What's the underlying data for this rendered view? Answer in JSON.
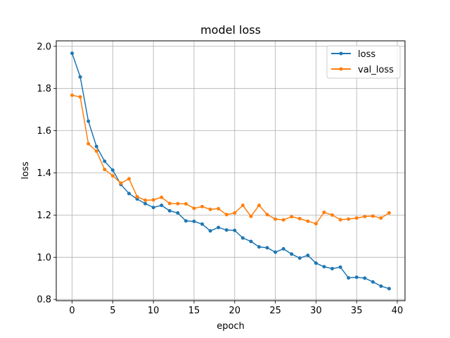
{
  "chart_data": {
    "type": "line",
    "title": "model loss",
    "xlabel": "epoch",
    "ylabel": "loss",
    "xlim": [
      -1.95,
      40.95
    ],
    "ylim": [
      0.794,
      2.026
    ],
    "xticks": [
      0,
      5,
      10,
      15,
      20,
      25,
      30,
      35,
      40
    ],
    "yticks": [
      0.8,
      1.0,
      1.2,
      1.4,
      1.6,
      1.8,
      2.0
    ],
    "xtick_labels": [
      "0",
      "5",
      "10",
      "15",
      "20",
      "25",
      "30",
      "35",
      "40"
    ],
    "ytick_labels": [
      "0.8",
      "1.0",
      "1.2",
      "1.4",
      "1.6",
      "1.8",
      "2.0"
    ],
    "grid": true,
    "legend_position": "top-right",
    "x": [
      0,
      1,
      2,
      3,
      4,
      5,
      6,
      7,
      8,
      9,
      10,
      11,
      12,
      13,
      14,
      15,
      16,
      17,
      18,
      19,
      20,
      21,
      22,
      23,
      24,
      25,
      26,
      27,
      28,
      29,
      30,
      31,
      32,
      33,
      34,
      35,
      36,
      37,
      38,
      39
    ],
    "series": [
      {
        "name": "loss",
        "color": "#1f77b4",
        "values": [
          1.967,
          1.855,
          1.645,
          1.525,
          1.455,
          1.413,
          1.345,
          1.302,
          1.276,
          1.254,
          1.236,
          1.246,
          1.22,
          1.21,
          1.172,
          1.17,
          1.157,
          1.125,
          1.141,
          1.129,
          1.127,
          1.091,
          1.075,
          1.049,
          1.045,
          1.024,
          1.04,
          1.015,
          0.996,
          1.009,
          0.972,
          0.955,
          0.946,
          0.953,
          0.902,
          0.905,
          0.901,
          0.883,
          0.863,
          0.851
        ]
      },
      {
        "name": "val_loss",
        "color": "#ff7f0e",
        "values": [
          1.768,
          1.76,
          1.538,
          1.503,
          1.416,
          1.386,
          1.351,
          1.372,
          1.287,
          1.27,
          1.272,
          1.284,
          1.255,
          1.254,
          1.253,
          1.232,
          1.24,
          1.227,
          1.23,
          1.202,
          1.21,
          1.246,
          1.194,
          1.246,
          1.202,
          1.181,
          1.177,
          1.192,
          1.183,
          1.171,
          1.159,
          1.213,
          1.2,
          1.178,
          1.181,
          1.186,
          1.193,
          1.195,
          1.186,
          1.21
        ]
      }
    ]
  }
}
